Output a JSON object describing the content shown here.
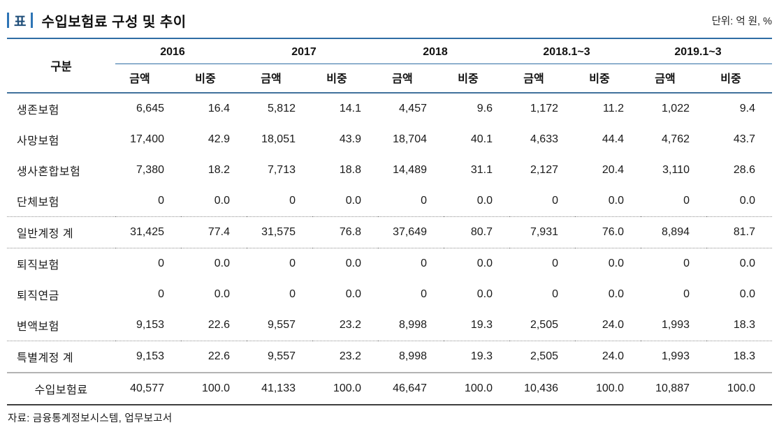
{
  "header": {
    "table_badge": "표",
    "title": "수입보험료 구성 및 추이",
    "unit_label": "단위: 억 원, %"
  },
  "table": {
    "row_header_label": "구분",
    "col_groups": [
      "2016",
      "2017",
      "2018",
      "2018.1~3",
      "2019.1~3"
    ],
    "sub_headers": [
      "금액",
      "비중"
    ],
    "rows": [
      {
        "label": "생존보험",
        "divider": "none",
        "align": "left",
        "values": [
          "6,645",
          "16.4",
          "5,812",
          "14.1",
          "4,457",
          "9.6",
          "1,172",
          "11.2",
          "1,022",
          "9.4"
        ]
      },
      {
        "label": "사망보험",
        "divider": "none",
        "align": "left",
        "values": [
          "17,400",
          "42.9",
          "18,051",
          "43.9",
          "18,704",
          "40.1",
          "4,633",
          "44.4",
          "4,762",
          "43.7"
        ]
      },
      {
        "label": "생사혼합보험",
        "divider": "none",
        "align": "left",
        "values": [
          "7,380",
          "18.2",
          "7,713",
          "18.8",
          "14,489",
          "31.1",
          "2,127",
          "20.4",
          "3,110",
          "28.6"
        ]
      },
      {
        "label": "단체보험",
        "divider": "none",
        "align": "left",
        "values": [
          "0",
          "0.0",
          "0",
          "0.0",
          "0",
          "0.0",
          "0",
          "0.0",
          "0",
          "0.0"
        ]
      },
      {
        "label": "일반계정 계",
        "divider": "dotted",
        "align": "left",
        "values": [
          "31,425",
          "77.4",
          "31,575",
          "76.8",
          "37,649",
          "80.7",
          "7,931",
          "76.0",
          "8,894",
          "81.7"
        ]
      },
      {
        "label": "퇴직보험",
        "divider": "dotted",
        "align": "left",
        "values": [
          "0",
          "0.0",
          "0",
          "0.0",
          "0",
          "0.0",
          "0",
          "0.0",
          "0",
          "0.0"
        ]
      },
      {
        "label": "퇴직연금",
        "divider": "none",
        "align": "left",
        "values": [
          "0",
          "0.0",
          "0",
          "0.0",
          "0",
          "0.0",
          "0",
          "0.0",
          "0",
          "0.0"
        ]
      },
      {
        "label": "변액보험",
        "divider": "none",
        "align": "left",
        "values": [
          "9,153",
          "22.6",
          "9,557",
          "23.2",
          "8,998",
          "19.3",
          "2,505",
          "24.0",
          "1,993",
          "18.3"
        ]
      },
      {
        "label": "특별계정 계",
        "divider": "dotted",
        "align": "left",
        "values": [
          "9,153",
          "22.6",
          "9,557",
          "23.2",
          "8,998",
          "19.3",
          "2,505",
          "24.0",
          "1,993",
          "18.3"
        ]
      },
      {
        "label": "수입보험료",
        "divider": "solid",
        "align": "center",
        "values": [
          "40,577",
          "100.0",
          "41,133",
          "100.0",
          "46,647",
          "100.0",
          "10,436",
          "100.0",
          "10,887",
          "100.0"
        ]
      }
    ]
  },
  "footer": {
    "source_label": "자료: 금융통계정보시스템, 업무보고서"
  },
  "colors": {
    "accent_blue": "#2e6da4",
    "badge_blue": "#2e75b6",
    "badge_text_navy": "#1f4e79",
    "header_rule_navy": "#41719c",
    "dotted_rule_gray": "#8f8f8f",
    "solid_rule_gray": "#b3b3b3",
    "table_bottom_dark": "#3f3f3f"
  }
}
